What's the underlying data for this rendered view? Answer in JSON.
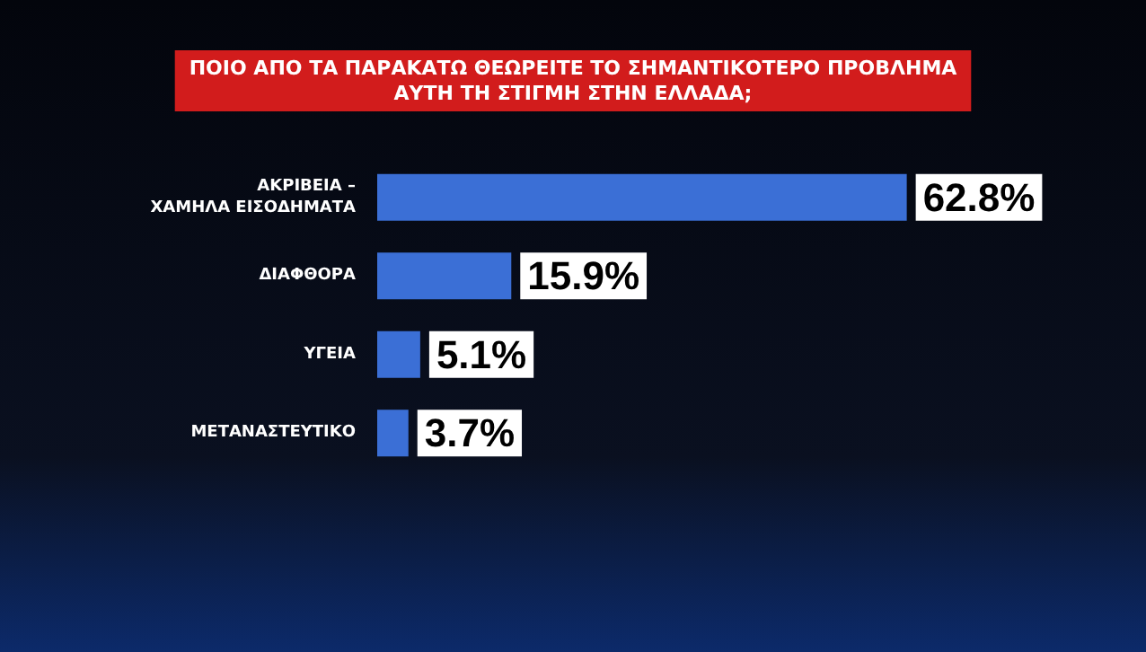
{
  "chart_data": {
    "type": "bar",
    "orientation": "horizontal",
    "title": "ΠΟΙΟ ΑΠΟ ΤΑ ΠΑΡΑΚΑΤΩ ΘΕΩΡΕΙΤΕ ΤΟ ΣΗΜΑΝΤΙΚΟΤΕΡΟ ΠΡΟΒΛΗΜΑ\nΑΥΤΗ ΤΗ ΣΤΙΓΜΗ ΣΤΗΝ ΕΛΛΑΔΑ;",
    "categories": [
      "ΑΚΡΙΒΕΙΑ –\nΧΑΜΗΛΑ ΕΙΣΟΔΗΜΑΤΑ",
      "ΔΙΑΦΘΟΡΑ",
      "ΥΓΕΙΑ",
      "ΜΕΤΑΝΑΣΤΕΥΤΙΚΟ"
    ],
    "values": [
      62.8,
      15.9,
      5.1,
      3.7
    ],
    "color": "#3b6fd6",
    "value_labels": [
      "62.8%",
      "15.9%",
      "5.1%",
      "3.7%"
    ]
  }
}
